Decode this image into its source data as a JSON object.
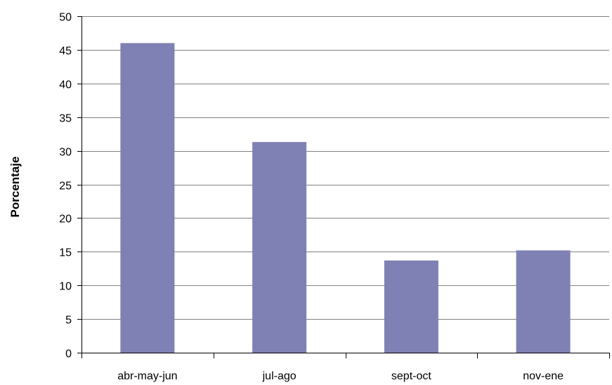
{
  "chart_data": {
    "type": "bar",
    "title": "",
    "xlabel": "",
    "ylabel": "Porcentaje",
    "categories": [
      "abr-may-jun",
      "jul-ago",
      "sept-oct",
      "nov-ene"
    ],
    "values": [
      46,
      31.3,
      13.7,
      15.2
    ],
    "ylim": [
      0,
      50
    ],
    "yticks": [
      "0",
      "5",
      "10",
      "15",
      "20",
      "25",
      "30",
      "35",
      "40",
      "45",
      "50"
    ],
    "grid": true,
    "legend": "none",
    "colors": {
      "bar": "#7f81b4",
      "grid": "#808080",
      "axis": "#000000"
    }
  }
}
